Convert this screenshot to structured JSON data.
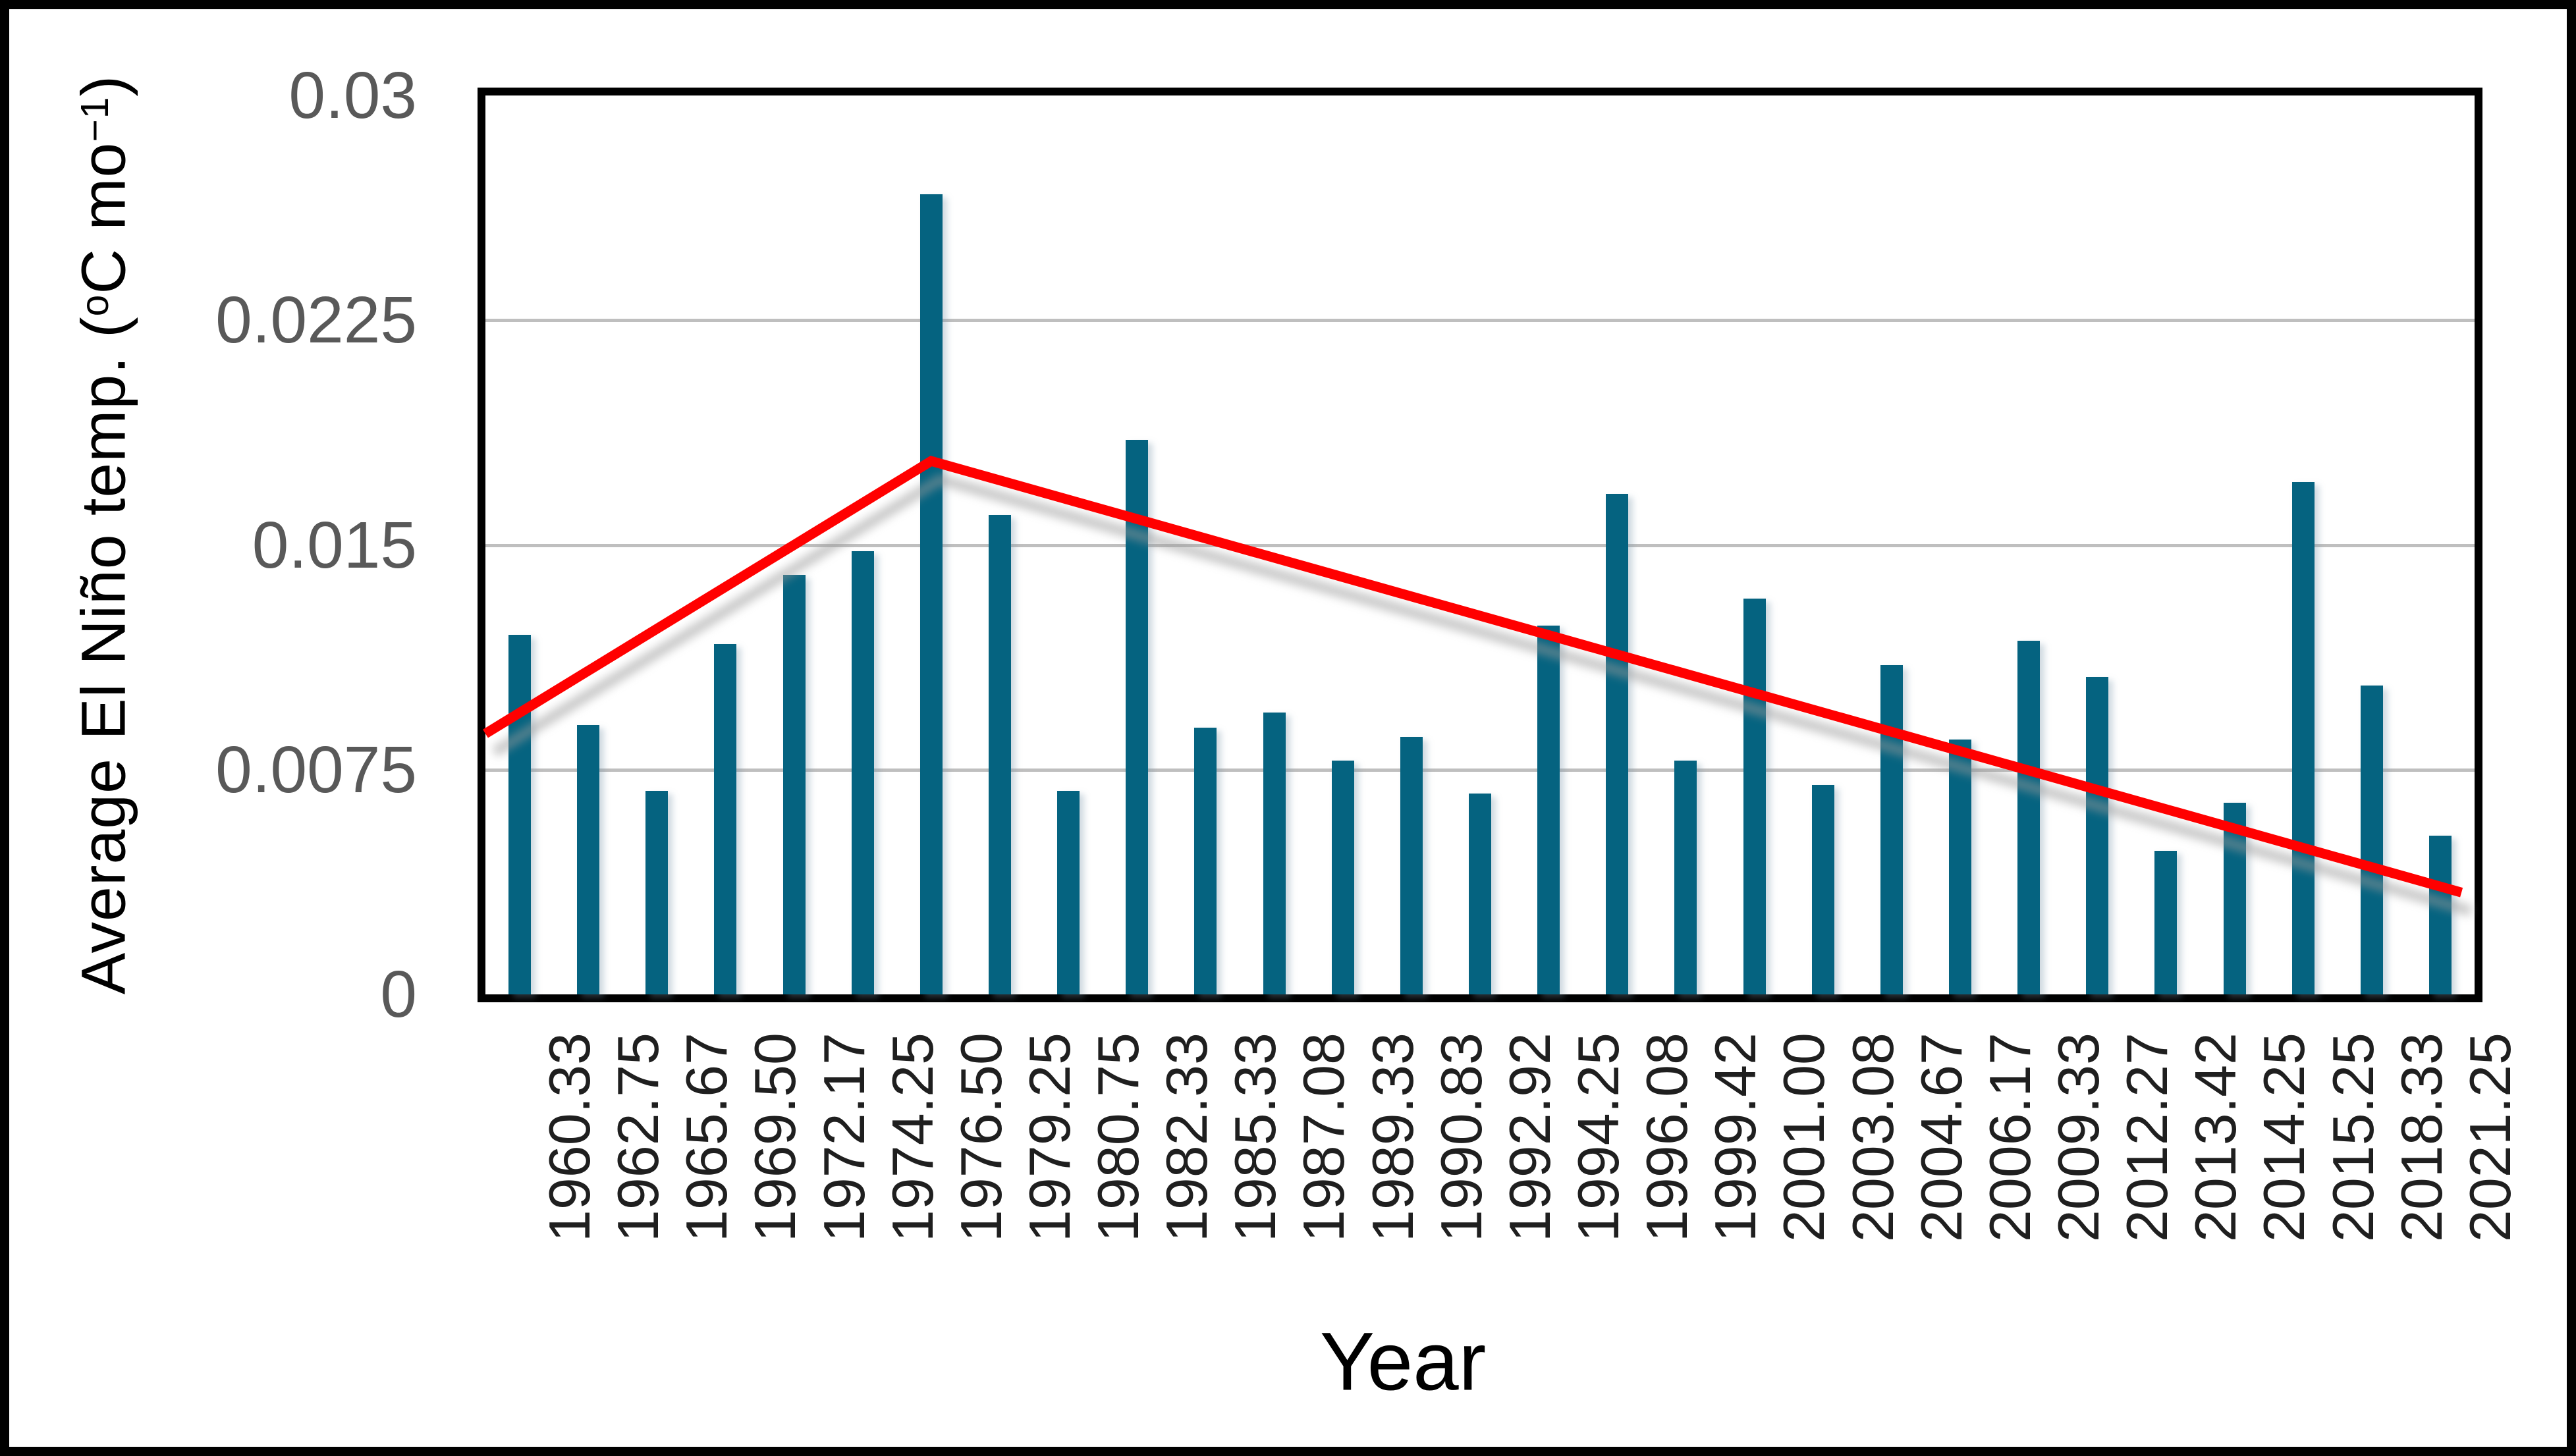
{
  "figure": {
    "background": "#ffffff",
    "outer_border_color": "#000000",
    "plot_border_color": "#000000"
  },
  "y_axis": {
    "title_parts": {
      "pre": "Average El Niño temp. (",
      "sup_deg": "o",
      "mid": "C mo",
      "sup_exp": "−1",
      "post": ")"
    },
    "tick_labels": [
      "0.03",
      "0.0225",
      "0.015",
      "0.0075",
      "0"
    ],
    "tick_values": [
      0.03,
      0.0225,
      0.015,
      0.0075,
      0
    ],
    "label_color": "#595959"
  },
  "x_axis": {
    "title": "Year",
    "label_color": "#1f1f1f"
  },
  "chart_data": {
    "type": "bar",
    "title": "",
    "xlabel": "Year",
    "ylabel": "Average El Niño temp. (oC mo-1)",
    "categories": [
      "1960.33",
      "1962.75",
      "1965.67",
      "1969.50",
      "1972.17",
      "1974.25",
      "1976.50",
      "1979.25",
      "1980.75",
      "1982.33",
      "1985.33",
      "1987.08",
      "1989.33",
      "1990.83",
      "1992.92",
      "1994.25",
      "1996.08",
      "1999.42",
      "2001.00",
      "2003.08",
      "2004.67",
      "2006.17",
      "2009.33",
      "2012.27",
      "2013.42",
      "2014.25",
      "2015.25",
      "2018.33",
      "2021.25"
    ],
    "values": [
      0.012,
      0.009,
      0.0068,
      0.0117,
      0.014,
      0.0148,
      0.0267,
      0.016,
      0.0068,
      0.0185,
      0.0089,
      0.0094,
      0.0078,
      0.0086,
      0.0067,
      0.0123,
      0.0167,
      0.0078,
      0.0132,
      0.007,
      0.011,
      0.0085,
      0.0118,
      0.0106,
      0.0048,
      0.0064,
      0.0171,
      0.0103,
      0.0053
    ],
    "ylim": [
      0,
      0.03
    ],
    "ytick_values": [
      0,
      0.0075,
      0.015,
      0.0225,
      0.03
    ],
    "grid": true,
    "legend": false,
    "bar_color": "#056380",
    "gridline_color": "#BFBFBF",
    "trend_line": {
      "color": "#FF0000",
      "shadow_color": "#9a9a9a",
      "points": [
        {
          "x_frac": 0.0,
          "value": 0.0087
        },
        {
          "x_frac": 0.2241,
          "value": 0.0178,
          "at_category": "1976.50"
        },
        {
          "x_frac": 0.9934,
          "value": 0.0034,
          "at_category": "2021.25"
        }
      ]
    }
  }
}
